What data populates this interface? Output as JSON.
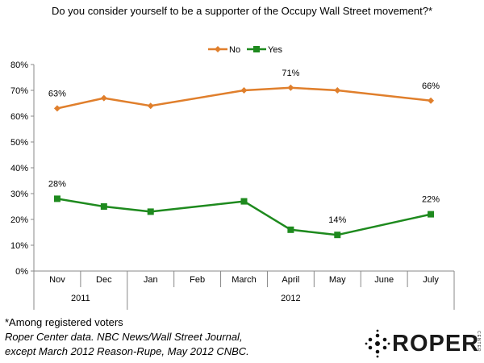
{
  "title": "Do you consider yourself to be a supporter of the Occupy Wall Street movement?*",
  "chart_data": {
    "type": "line",
    "categories": [
      "Nov",
      "Dec",
      "Jan",
      "Feb",
      "March",
      "April",
      "May",
      "June",
      "July"
    ],
    "year_groups": [
      {
        "label": "2011",
        "span": [
          0,
          1
        ]
      },
      {
        "label": "2012",
        "span": [
          2,
          8
        ]
      }
    ],
    "ylim": [
      0,
      80
    ],
    "yticks": [
      0,
      10,
      20,
      30,
      40,
      50,
      60,
      70,
      80
    ],
    "ytick_format": "percent",
    "legend_position": "top-center",
    "series": [
      {
        "name": "No",
        "color": "#e07f2c",
        "marker": "diamond",
        "points": [
          {
            "x": "Nov",
            "y": 63
          },
          {
            "x": "Dec",
            "y": 67
          },
          {
            "x": "Jan",
            "y": 64
          },
          {
            "x": "March",
            "y": 70
          },
          {
            "x": "April",
            "y": 71
          },
          {
            "x": "May",
            "y": 70
          },
          {
            "x": "July",
            "y": 66
          }
        ]
      },
      {
        "name": "Yes",
        "color": "#1e8a1e",
        "marker": "square",
        "points": [
          {
            "x": "Nov",
            "y": 28
          },
          {
            "x": "Dec",
            "y": 25
          },
          {
            "x": "Jan",
            "y": 23
          },
          {
            "x": "March",
            "y": 27
          },
          {
            "x": "April",
            "y": 16
          },
          {
            "x": "May",
            "y": 14
          },
          {
            "x": "July",
            "y": 22
          }
        ]
      }
    ],
    "data_labels": [
      {
        "series": "No",
        "x": "Nov",
        "text": "63%"
      },
      {
        "series": "No",
        "x": "April",
        "text": "71%"
      },
      {
        "series": "No",
        "x": "July",
        "text": "66%"
      },
      {
        "series": "Yes",
        "x": "Nov",
        "text": "28%"
      },
      {
        "series": "Yes",
        "x": "May",
        "text": "14%"
      },
      {
        "series": "Yes",
        "x": "July",
        "text": "22%"
      }
    ]
  },
  "footnotes": {
    "note": "*Among registered voters",
    "source_line1": "Roper Center data. NBC News/Wall Street Journal,",
    "source_line2": "except March 2012 Reason-Rupe, May 2012 CNBC."
  },
  "logo": {
    "word": "ROPER",
    "tagline": "CENTER"
  }
}
